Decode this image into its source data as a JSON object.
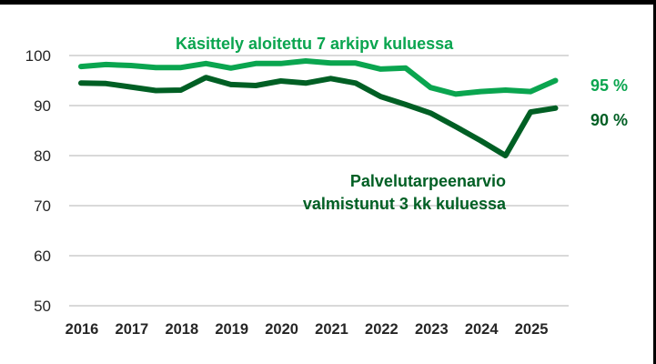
{
  "chart_data": {
    "type": "line",
    "title": "",
    "xlabel": "",
    "ylabel": "",
    "ylim": [
      50,
      100
    ],
    "yticks": [
      100,
      90,
      80,
      70,
      60,
      50
    ],
    "xtick_labels": [
      "2016",
      "2017",
      "2018",
      "2019",
      "2020",
      "2021",
      "2022",
      "2023",
      "2024",
      "2025"
    ],
    "grid": "horizontal",
    "legend": "none (direct labels)",
    "x": [
      "2016/1",
      "2016/2",
      "2017/1",
      "2017/2",
      "2018/1",
      "2018/2",
      "2019/1",
      "2019/2",
      "2020/1",
      "2020/2",
      "2021/1",
      "2021/2",
      "2022/1",
      "2022/2",
      "2023/1",
      "2023/2",
      "2024/1",
      "2024/2",
      "2025/1",
      "2025/2"
    ],
    "series": [
      {
        "name": "Käsittely aloitettu 7 arkipv kuluessa",
        "color": "#0AA54F",
        "end_label": "95 %",
        "values": [
          97.8,
          98.2,
          98.0,
          97.6,
          97.6,
          98.4,
          97.5,
          98.4,
          98.4,
          98.9,
          98.5,
          98.5,
          97.3,
          97.5,
          93.6,
          92.3,
          92.8,
          93.1,
          92.8,
          95.0
        ]
      },
      {
        "name": "Palvelutarpeenarvio valmistunut 3 kk kuluessa",
        "color": "#005F24",
        "end_label": "90 %",
        "values": [
          94.5,
          94.4,
          93.7,
          93.0,
          93.1,
          95.6,
          94.2,
          94.0,
          94.9,
          94.5,
          95.4,
          94.5,
          91.8,
          90.2,
          88.5,
          85.8,
          83.0,
          80.0,
          88.7,
          89.5
        ]
      }
    ],
    "annotations": [
      {
        "text": "Käsittely aloitettu 7 arkipv kuluessa",
        "series": 0
      },
      {
        "text": "Palvelutarpeenarvio",
        "series": 1,
        "line": 1
      },
      {
        "text": "valmistunut 3 kk kuluessa",
        "series": 1,
        "line": 2
      }
    ]
  },
  "labels": {
    "series_a_title": "Käsittely aloitettu 7 arkipv kuluessa",
    "series_b_line1": "Palvelutarpeenarvio",
    "series_b_line2": "valmistunut 3 kk kuluessa",
    "series_a_end": "95 %",
    "series_b_end": "90 %"
  }
}
